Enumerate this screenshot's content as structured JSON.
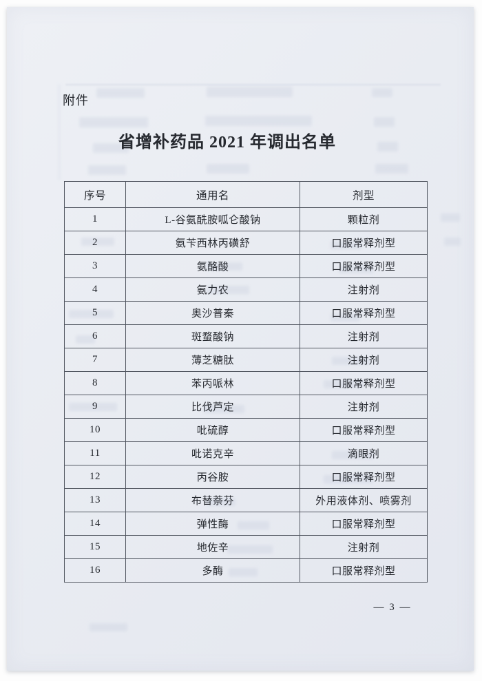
{
  "page": {
    "attachment_label": "附件",
    "title": "省增补药品 2021 年调出名单",
    "page_number": "— 3 —"
  },
  "table": {
    "headers": [
      "序号",
      "通用名",
      "剂型"
    ],
    "rows": [
      {
        "no": "1",
        "name": "L-谷氨酰胺呱仑酸钠",
        "form": "颗粒剂"
      },
      {
        "no": "2",
        "name": "氨苄西林丙磺舒",
        "form": "口服常释剂型"
      },
      {
        "no": "3",
        "name": "氨酪酸",
        "form": "口服常释剂型"
      },
      {
        "no": "4",
        "name": "氨力农",
        "form": "注射剂"
      },
      {
        "no": "5",
        "name": "奥沙普秦",
        "form": "口服常释剂型"
      },
      {
        "no": "6",
        "name": "斑蝥酸钠",
        "form": "注射剂"
      },
      {
        "no": "7",
        "name": "薄芝糖肽",
        "form": "注射剂"
      },
      {
        "no": "8",
        "name": "苯丙哌林",
        "form": "口服常释剂型"
      },
      {
        "no": "9",
        "name": "比伐芦定",
        "form": "注射剂"
      },
      {
        "no": "10",
        "name": "吡硫醇",
        "form": "口服常释剂型"
      },
      {
        "no": "11",
        "name": "吡诺克辛",
        "form": "滴眼剂"
      },
      {
        "no": "12",
        "name": "丙谷胺",
        "form": "口服常释剂型"
      },
      {
        "no": "13",
        "name": "布替萘芬",
        "form": "外用液体剂、喷雾剂"
      },
      {
        "no": "14",
        "name": "弹性酶",
        "form": "口服常释剂型"
      },
      {
        "no": "15",
        "name": "地佐辛",
        "form": "注射剂"
      },
      {
        "no": "16",
        "name": "多酶",
        "form": "口服常释剂型"
      }
    ]
  },
  "colors": {
    "paper": "#e9ecf2",
    "background": "#fdfdfd",
    "ink": "#26292f",
    "table_border": "#50555f",
    "bleed_through": "#cdd3e1"
  }
}
